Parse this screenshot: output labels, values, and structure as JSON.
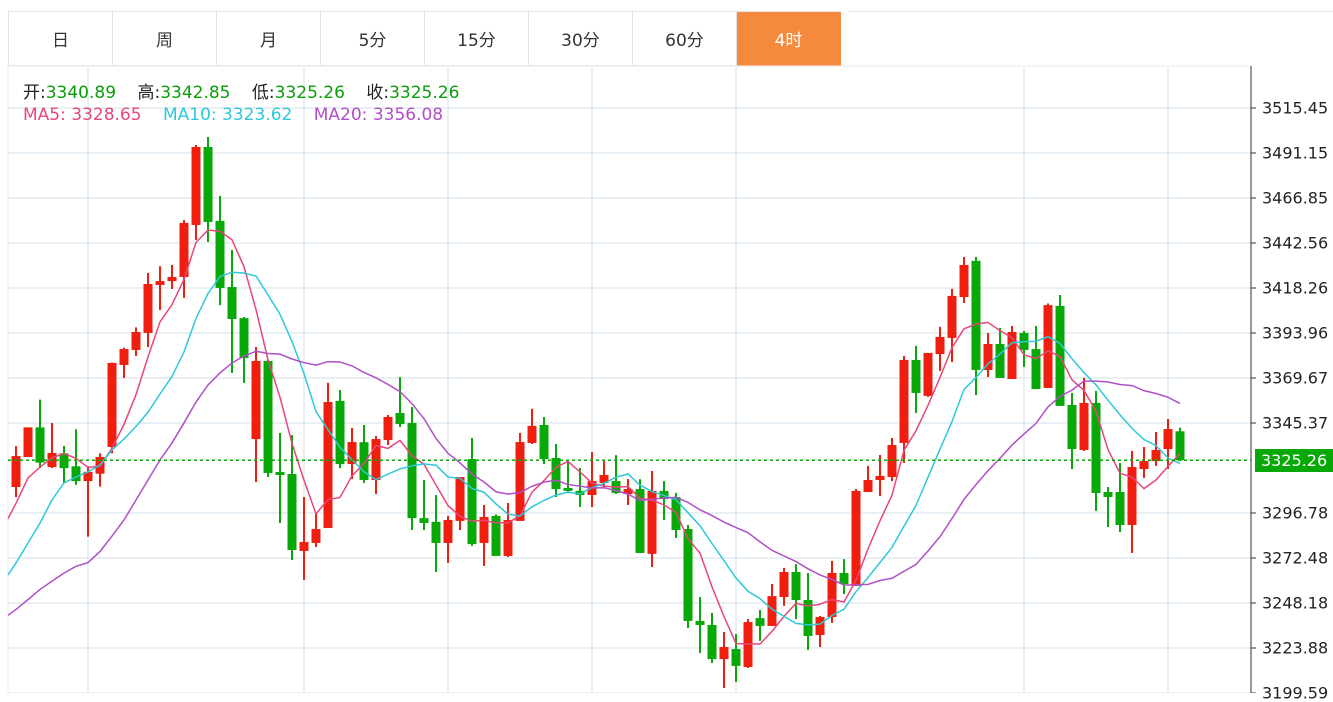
{
  "tabs": [
    {
      "label": "日",
      "active": false
    },
    {
      "label": "周",
      "active": false
    },
    {
      "label": "月",
      "active": false
    },
    {
      "label": "5分",
      "active": false
    },
    {
      "label": "15分",
      "active": false
    },
    {
      "label": "30分",
      "active": false
    },
    {
      "label": "60分",
      "active": false
    },
    {
      "label": "4时",
      "active": true
    }
  ],
  "ohlc_readout": {
    "open_label": "开:",
    "open": "3340.89",
    "high_label": "高:",
    "high": "3342.85",
    "low_label": "低:",
    "low": "3325.26",
    "close_label": "收:",
    "close": "3325.26"
  },
  "ma_readout": {
    "ma5_label": "MA5:",
    "ma5": "3328.65",
    "ma10_label": "MA10:",
    "ma10": "3323.62",
    "ma20_label": "MA20:",
    "ma20": "3356.08"
  },
  "colors": {
    "up": "#f01e0e",
    "down": "#07a807",
    "ma5": "#e8467c",
    "ma10": "#2ec8d8",
    "ma20": "#b04fc6",
    "accent": "#f58a3e"
  },
  "chart_data": {
    "type": "candlestick",
    "y_ticks": [
      "3515.45",
      "3491.15",
      "3466.85",
      "3442.56",
      "3418.26",
      "3393.96",
      "3369.67",
      "3345.37",
      "3296.78",
      "3272.48",
      "3248.18",
      "3223.88",
      "3199.59"
    ],
    "last_price": "3325.26",
    "grid": true,
    "candles_ohlc": [
      [
        3310.8,
        3332.9,
        3305.4,
        3327.5
      ],
      [
        3327,
        3343,
        3327,
        3343
      ],
      [
        3343,
        3358,
        3321,
        3324
      ],
      [
        3321.6,
        3345.4,
        3321,
        3329.2
      ],
      [
        3329,
        3333,
        3313,
        3321
      ],
      [
        3322,
        3342,
        3312,
        3314
      ],
      [
        3314,
        3322,
        3284,
        3319
      ],
      [
        3318,
        3329,
        3311,
        3327
      ],
      [
        3332.4,
        3378,
        3329,
        3377.8
      ],
      [
        3376.7,
        3386,
        3369.7,
        3385.3
      ],
      [
        3384.8,
        3397,
        3381.6,
        3394.5
      ],
      [
        3394,
        3426.4,
        3386.4,
        3420.4
      ],
      [
        3419.9,
        3430,
        3406.4,
        3422
      ],
      [
        3422,
        3430.7,
        3417.7,
        3424.2
      ],
      [
        3424.2,
        3455,
        3412.9,
        3453.4
      ],
      [
        3452.3,
        3495.5,
        3444.2,
        3494.4
      ],
      [
        3494.4,
        3499.8,
        3443.1,
        3453.9
      ],
      [
        3454.5,
        3468,
        3409,
        3418.3
      ],
      [
        3418.8,
        3438.8,
        3372.4,
        3401.5
      ],
      [
        3402,
        3402.6,
        3367,
        3380.5
      ],
      [
        3336.7,
        3386.4,
        3313.5,
        3378.9
      ],
      [
        3378.9,
        3379.4,
        3316.2,
        3318.4
      ],
      [
        3318.9,
        3340,
        3291.4,
        3317.3
      ],
      [
        3317.8,
        3338.9,
        3271.4,
        3276.8
      ],
      [
        3276.3,
        3305.4,
        3260.6,
        3281.1
      ],
      [
        3280.6,
        3296.8,
        3278.4,
        3288.1
      ],
      [
        3288.7,
        3367,
        3288.7,
        3356.7
      ],
      [
        3357.3,
        3363.2,
        3321,
        3323.2
      ],
      [
        3323.2,
        3342.7,
        3315.1,
        3335.1
      ],
      [
        3335,
        3344.3,
        3313,
        3314.6
      ],
      [
        3314.6,
        3338.4,
        3307,
        3336.7
      ],
      [
        3336.2,
        3349.7,
        3333.5,
        3348.6
      ],
      [
        3350.8,
        3370.2,
        3343.2,
        3344.8
      ],
      [
        3345.4,
        3354,
        3287.6,
        3294
      ],
      [
        3294,
        3314.6,
        3287.6,
        3291.4
      ],
      [
        3292,
        3306.5,
        3264.9,
        3280.6
      ],
      [
        3280.6,
        3295.2,
        3269.8,
        3293
      ],
      [
        3292.5,
        3316.2,
        3287.6,
        3316.2
      ],
      [
        3325.9,
        3337.3,
        3279,
        3280
      ],
      [
        3280.6,
        3301.1,
        3268.2,
        3294.6
      ],
      [
        3295.2,
        3296,
        3273.6,
        3273.6
      ],
      [
        3273.6,
        3302.2,
        3273,
        3293
      ],
      [
        3292.5,
        3340,
        3292.5,
        3335.1
      ],
      [
        3334.6,
        3353,
        3334,
        3343.8
      ],
      [
        3344.3,
        3348.6,
        3323.2,
        3325.9
      ],
      [
        3326.5,
        3334,
        3305.4,
        3309.7
      ],
      [
        3310.3,
        3324.3,
        3307.6,
        3308.7
      ],
      [
        3308.7,
        3321.1,
        3300,
        3306.5
      ],
      [
        3306.5,
        3329.7,
        3300,
        3314
      ],
      [
        3313,
        3324.8,
        3310.8,
        3317.3
      ],
      [
        3314,
        3328,
        3307,
        3307.6
      ],
      [
        3307,
        3315.1,
        3301.1,
        3309.7
      ],
      [
        3309.7,
        3315,
        3275.2,
        3275.2
      ],
      [
        3274.7,
        3319.5,
        3267.6,
        3308.7
      ],
      [
        3308.7,
        3314,
        3293,
        3304.3
      ],
      [
        3305.4,
        3307.6,
        3283.3,
        3287.6
      ],
      [
        3288.1,
        3290.3,
        3234.7,
        3238.5
      ],
      [
        3238.5,
        3251.4,
        3221.2,
        3236.3
      ],
      [
        3236.3,
        3242.8,
        3215.8,
        3217.9
      ],
      [
        3217.9,
        3232.5,
        3202.3,
        3224.4
      ],
      [
        3223.3,
        3231.4,
        3205.5,
        3214.2
      ],
      [
        3213.6,
        3239.5,
        3213.1,
        3237.9
      ],
      [
        3240,
        3244.4,
        3227.7,
        3235.8
      ],
      [
        3235.8,
        3258.4,
        3235.8,
        3251.9
      ],
      [
        3251.4,
        3267.1,
        3246.6,
        3264.9
      ],
      [
        3264.9,
        3269.2,
        3239.5,
        3249.8
      ],
      [
        3249.8,
        3264.4,
        3222.8,
        3230.4
      ],
      [
        3230.9,
        3241.2,
        3224.4,
        3240.6
      ],
      [
        3240.6,
        3270.9,
        3237.4,
        3264.4
      ],
      [
        3264.4,
        3271.9,
        3253,
        3258.4
      ],
      [
        3257.4,
        3309.7,
        3257.4,
        3308.7
      ],
      [
        3308.1,
        3322.2,
        3308.1,
        3314.6
      ],
      [
        3314.6,
        3328.1,
        3306,
        3316.8
      ],
      [
        3316.2,
        3337.3,
        3314,
        3333.5
      ],
      [
        3334.6,
        3381.6,
        3323.8,
        3379.4
      ],
      [
        3379.4,
        3387,
        3350.8,
        3361.6
      ],
      [
        3360,
        3383.2,
        3359.5,
        3383.2
      ],
      [
        3382.6,
        3397.3,
        3373.5,
        3391.8
      ],
      [
        3391.3,
        3417.8,
        3378.3,
        3414
      ],
      [
        3413.4,
        3435,
        3410.2,
        3430.7
      ],
      [
        3432.9,
        3435,
        3360.5,
        3374
      ],
      [
        3374,
        3394,
        3370.2,
        3388
      ],
      [
        3388,
        3396.7,
        3369.7,
        3369.7
      ],
      [
        3369.1,
        3397.8,
        3369.1,
        3394.5
      ],
      [
        3394,
        3395,
        3375.6,
        3384.8
      ],
      [
        3385.3,
        3397.8,
        3363.7,
        3363.7
      ],
      [
        3364.3,
        3409.9,
        3364.3,
        3409
      ],
      [
        3408.6,
        3414.5,
        3354.6,
        3354.6
      ],
      [
        3355.1,
        3361.6,
        3320.5,
        3331.3
      ],
      [
        3330.8,
        3369.7,
        3330.3,
        3356.2
      ],
      [
        3356.2,
        3362.7,
        3297.9,
        3307.6
      ],
      [
        3308.1,
        3310.8,
        3289.2,
        3305.4
      ],
      [
        3308.1,
        3323.8,
        3286.5,
        3290.3
      ],
      [
        3290.3,
        3330.3,
        3275.2,
        3321.6
      ],
      [
        3320.5,
        3332.4,
        3315.7,
        3324.8
      ],
      [
        3324.8,
        3340.5,
        3322.2,
        3330.8
      ],
      [
        3331.3,
        3347.5,
        3320.5,
        3342.1
      ],
      [
        3340.89,
        3342.85,
        3325.26,
        3325.26
      ]
    ],
    "ma_leading_values": {
      "ma5": [
        3302,
        3315.7,
        3321.6,
        3326.5
      ],
      "ma10": [
        3269.8,
        3280.6,
        3291.4,
        3303.8,
        3313,
        3316.2,
        3319,
        3322.7,
        3330.8
      ],
      "ma20": [
        3244.7,
        3250,
        3255.5,
        3260,
        3264.3,
        3268,
        3270,
        3276,
        3284.3,
        3293,
        3303.8,
        3314.6,
        3325.4,
        3334.6,
        3345.4,
        3356.7,
        3365.9,
        3372.4,
        3377.8
      ]
    }
  }
}
